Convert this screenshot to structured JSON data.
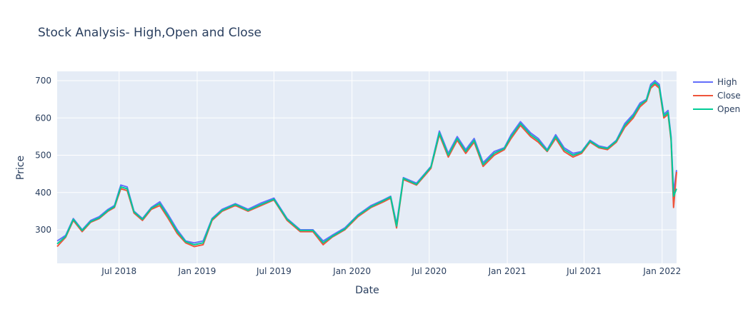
{
  "chart_data": {
    "type": "line",
    "title": "Stock Analysis- High,Open and Close",
    "xlabel": "Date",
    "ylabel": "Price",
    "xlim": [
      "2018-02-05",
      "2022-02-04"
    ],
    "ylim": [
      210,
      725
    ],
    "x_ticks": [
      {
        "date": "2018-07-01",
        "label": "Jul 2018"
      },
      {
        "date": "2019-01-01",
        "label": "Jan 2019"
      },
      {
        "date": "2019-07-01",
        "label": "Jul 2019"
      },
      {
        "date": "2020-01-01",
        "label": "Jan 2020"
      },
      {
        "date": "2020-07-01",
        "label": "Jul 2020"
      },
      {
        "date": "2021-01-01",
        "label": "Jan 2021"
      },
      {
        "date": "2021-07-01",
        "label": "Jul 2021"
      },
      {
        "date": "2022-01-01",
        "label": "Jan 2022"
      }
    ],
    "y_ticks": [
      300,
      400,
      500,
      600,
      700
    ],
    "grid": true,
    "legend": "top-right",
    "x": [
      "2018-02-05",
      "2018-02-25",
      "2018-03-15",
      "2018-04-05",
      "2018-04-25",
      "2018-05-15",
      "2018-06-05",
      "2018-06-20",
      "2018-07-05",
      "2018-07-20",
      "2018-08-05",
      "2018-08-25",
      "2018-09-15",
      "2018-10-05",
      "2018-10-25",
      "2018-11-15",
      "2018-12-05",
      "2018-12-25",
      "2019-01-15",
      "2019-02-05",
      "2019-03-01",
      "2019-04-01",
      "2019-05-01",
      "2019-06-01",
      "2019-07-01",
      "2019-08-01",
      "2019-09-01",
      "2019-10-01",
      "2019-10-25",
      "2019-11-15",
      "2019-12-15",
      "2020-01-15",
      "2020-02-15",
      "2020-03-15",
      "2020-04-01",
      "2020-04-15",
      "2020-05-01",
      "2020-06-01",
      "2020-06-20",
      "2020-07-05",
      "2020-07-25",
      "2020-08-15",
      "2020-09-05",
      "2020-09-25",
      "2020-10-15",
      "2020-11-05",
      "2020-12-01",
      "2020-12-25",
      "2021-01-10",
      "2021-02-01",
      "2021-02-25",
      "2021-03-15",
      "2021-04-05",
      "2021-04-25",
      "2021-05-15",
      "2021-06-05",
      "2021-06-25",
      "2021-07-15",
      "2021-08-05",
      "2021-08-25",
      "2021-09-15",
      "2021-10-05",
      "2021-10-25",
      "2021-11-10",
      "2021-11-25",
      "2021-12-05",
      "2021-12-15",
      "2021-12-25",
      "2022-01-05",
      "2022-01-15",
      "2022-01-22",
      "2022-01-28",
      "2022-02-04"
    ],
    "series": [
      {
        "name": "High",
        "color": "#636efa",
        "values": [
          270,
          285,
          330,
          300,
          325,
          335,
          355,
          365,
          420,
          415,
          350,
          330,
          360,
          375,
          340,
          300,
          270,
          265,
          270,
          330,
          355,
          370,
          355,
          372,
          385,
          330,
          300,
          300,
          270,
          285,
          305,
          340,
          365,
          380,
          390,
          315,
          440,
          425,
          450,
          470,
          565,
          505,
          550,
          515,
          545,
          480,
          510,
          520,
          555,
          590,
          560,
          545,
          515,
          555,
          520,
          505,
          510,
          540,
          525,
          520,
          540,
          585,
          610,
          640,
          650,
          690,
          700,
          690,
          610,
          620,
          550,
          400,
          460
        ]
      },
      {
        "name": "Close",
        "color": "#ef553b",
        "values": [
          255,
          280,
          325,
          295,
          320,
          330,
          350,
          360,
          410,
          405,
          345,
          325,
          355,
          365,
          330,
          290,
          265,
          255,
          260,
          325,
          350,
          365,
          350,
          365,
          380,
          325,
          295,
          295,
          260,
          280,
          300,
          335,
          360,
          375,
          385,
          305,
          435,
          420,
          445,
          465,
          555,
          495,
          540,
          505,
          535,
          470,
          500,
          515,
          545,
          580,
          550,
          535,
          510,
          545,
          510,
          495,
          505,
          535,
          520,
          515,
          535,
          575,
          600,
          630,
          645,
          680,
          690,
          680,
          600,
          610,
          540,
          360,
          455
        ]
      },
      {
        "name": "Open",
        "color": "#00cc96",
        "values": [
          262,
          282,
          328,
          298,
          322,
          332,
          352,
          362,
          415,
          410,
          348,
          328,
          358,
          370,
          335,
          295,
          268,
          260,
          265,
          328,
          352,
          368,
          352,
          368,
          382,
          328,
          298,
          298,
          265,
          282,
          302,
          338,
          362,
          378,
          388,
          310,
          438,
          422,
          448,
          468,
          560,
          500,
          545,
          510,
          540,
          475,
          505,
          518,
          550,
          585,
          555,
          540,
          512,
          550,
          515,
          500,
          508,
          538,
          522,
          518,
          538,
          580,
          605,
          635,
          648,
          685,
          695,
          685,
          605,
          615,
          545,
          390,
          410
        ]
      }
    ]
  }
}
